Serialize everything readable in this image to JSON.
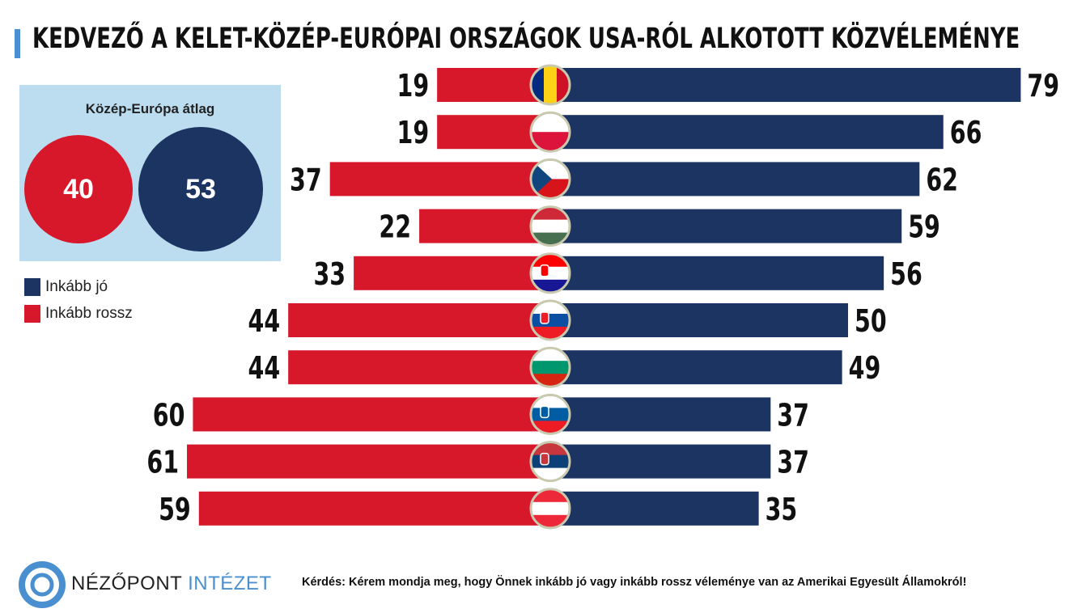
{
  "chart_data": {
    "type": "bar",
    "orientation": "horizontal-diverging",
    "title": "KEDVEZŐ A KELET-KÖZÉP-EURÓPAI ORSZÁGOK USA-RÓL ALKOTOTT KÖZVÉLEMÉNYE",
    "categories": [
      "flag-romania",
      "flag-poland",
      "flag-czech-republic",
      "flag-hungary",
      "flag-croatia",
      "flag-slovakia",
      "flag-bulgaria",
      "flag-slovenia",
      "flag-serbia",
      "flag-austria"
    ],
    "series": [
      {
        "name": "Inkább jó",
        "color": "#1b3461",
        "values": [
          79,
          66,
          62,
          59,
          56,
          50,
          49,
          37,
          37,
          35
        ]
      },
      {
        "name": "Inkább rossz",
        "color": "#d7182a",
        "values": [
          19,
          19,
          37,
          22,
          33,
          44,
          44,
          60,
          61,
          59
        ]
      }
    ],
    "legend_placement": "left",
    "grid": false
  },
  "average": {
    "title": "Közép-Európa átlag",
    "bad": "40",
    "good": "53"
  },
  "legend": {
    "good": "Inkább jó",
    "bad": "Inkább rossz"
  },
  "footer": {
    "brand_a": "NÉZŐPONT",
    "brand_b": "INTÉZET",
    "question": "Kérdés: Kérem mondja meg, hogy Önnek inkább jó vagy inkább rossz véleménye van az Amerikai Egyesült Államokról!"
  },
  "colors": {
    "accent": "#4a8fcf",
    "box": "#bcdcf0"
  }
}
